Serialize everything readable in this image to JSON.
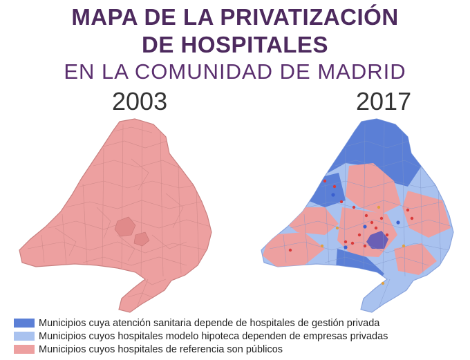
{
  "title": {
    "line1": "MAPA DE LA PRIVATIZACIÓN",
    "line2": "DE HOSPITALES",
    "line3": "EN LA COMUNIDAD DE MADRID"
  },
  "maps": {
    "left": {
      "year": "2003"
    },
    "right": {
      "year": "2017"
    }
  },
  "legend": {
    "items": [
      {
        "label": "Municipios cuya atención sanitaria depende de hospitales de gestión privada",
        "color": "#5b7fd6"
      },
      {
        "label": "Municipios cuyos hospitales modelo hipoteca dependen de empresas privadas",
        "color": "#a9c2ef"
      },
      {
        "label": "Municipios cuyos hospitales de referencia son públicos",
        "color": "#eda0a0"
      }
    ]
  },
  "colors": {
    "private": "#5b7fd6",
    "mortgage": "#a9c2ef",
    "public": "#eda0a0",
    "public_dark": "#e08a8a",
    "hospital_private": "#d93a3a",
    "hospital_public": "#3a5fcf",
    "hospital_other": "#e0a040"
  }
}
